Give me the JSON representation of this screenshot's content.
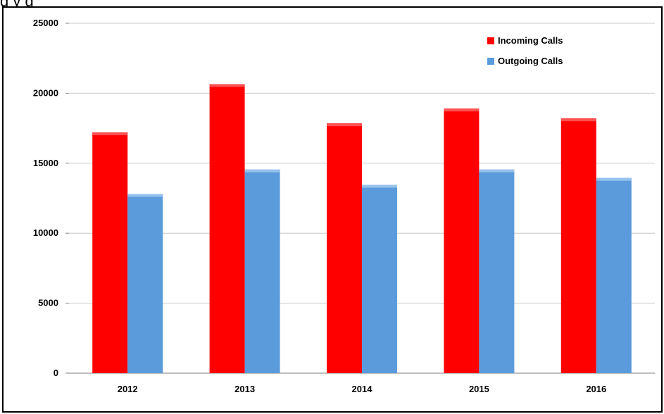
{
  "caption_fragment": "g           y                              g",
  "colors": {
    "incoming": "#ff0000",
    "outgoing": "#5b9bdc",
    "grid": "#c8c8c8",
    "axis": "#7f7f7f"
  },
  "chart_data": {
    "type": "bar",
    "categories": [
      "2012",
      "2013",
      "2014",
      "2015",
      "2016"
    ],
    "series": [
      {
        "name": "Incoming Calls",
        "values": [
          17200,
          20650,
          17850,
          18900,
          18200
        ]
      },
      {
        "name": "Outgoing Calls",
        "values": [
          12800,
          14550,
          13450,
          14550,
          13950
        ]
      }
    ],
    "ylim": [
      0,
      25000
    ],
    "yticks": [
      "0",
      "5000",
      "10000",
      "15000",
      "20000",
      "25000"
    ],
    "grid": true,
    "legend_position": "top-right",
    "title": "",
    "xlabel": "",
    "ylabel": ""
  }
}
